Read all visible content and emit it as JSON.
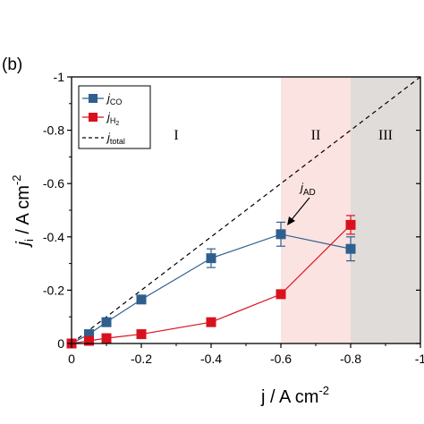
{
  "chart_data": {
    "type": "scatter",
    "panel_label": "(b)",
    "xlabel": "j / A cm",
    "xlabel_sup": "-2",
    "ylabel_main": "j",
    "ylabel_sub": "i",
    "ylabel_rest": " / A cm",
    "ylabel_sup": "-2",
    "xlim": [
      0,
      -1
    ],
    "ylim": [
      0,
      -1
    ],
    "x_ticks": [
      0,
      -0.2,
      -0.4,
      -0.6,
      -0.8,
      -1
    ],
    "x_tick_labels": [
      "0",
      "-0.2",
      "-0.4",
      "-0.6",
      "-0.8",
      "-1"
    ],
    "y_ticks": [
      0,
      -0.2,
      -0.4,
      -0.6,
      -0.8,
      -1
    ],
    "y_tick_labels": [
      "0",
      "-0.2",
      "-0.4",
      "-0.6",
      "-0.8",
      "-1"
    ],
    "regions": [
      {
        "label": "I",
        "x_start": 0,
        "x_end": -0.6,
        "color": "#ffffff"
      },
      {
        "label": "II",
        "x_start": -0.6,
        "x_end": -0.8,
        "color": "#fbe3e1"
      },
      {
        "label": "III",
        "x_start": -0.8,
        "x_end": -1,
        "color": "#e0dcd9"
      }
    ],
    "series": [
      {
        "name": "j",
        "name_sub": "CO",
        "color": "#2e5f8f",
        "x": [
          0,
          -0.05,
          -0.1,
          -0.2,
          -0.4,
          -0.6,
          -0.8
        ],
        "y": [
          0,
          -0.035,
          -0.08,
          -0.165,
          -0.32,
          -0.41,
          -0.355
        ],
        "error": [
          0,
          0.01,
          0.01,
          0.01,
          0.035,
          0.045,
          0.045
        ]
      },
      {
        "name": "j",
        "name_sub": "H",
        "name_sub2": "2",
        "color": "#d9111d",
        "x": [
          0,
          -0.05,
          -0.1,
          -0.2,
          -0.4,
          -0.6,
          -0.8
        ],
        "y": [
          0,
          -0.01,
          -0.02,
          -0.035,
          -0.08,
          -0.185,
          -0.445
        ],
        "error": [
          0,
          0.005,
          0.005,
          0.005,
          0.005,
          0.01,
          0.035
        ]
      }
    ],
    "reference_line": {
      "name": "j",
      "name_sub": "total",
      "x": [
        0,
        -1
      ],
      "y": [
        0,
        -1
      ],
      "style": "dashed",
      "color": "#000000"
    },
    "annotation": {
      "text": "j",
      "text_sub": "AD",
      "x": -0.6,
      "y": -0.41
    },
    "legend_position": "top-left"
  }
}
